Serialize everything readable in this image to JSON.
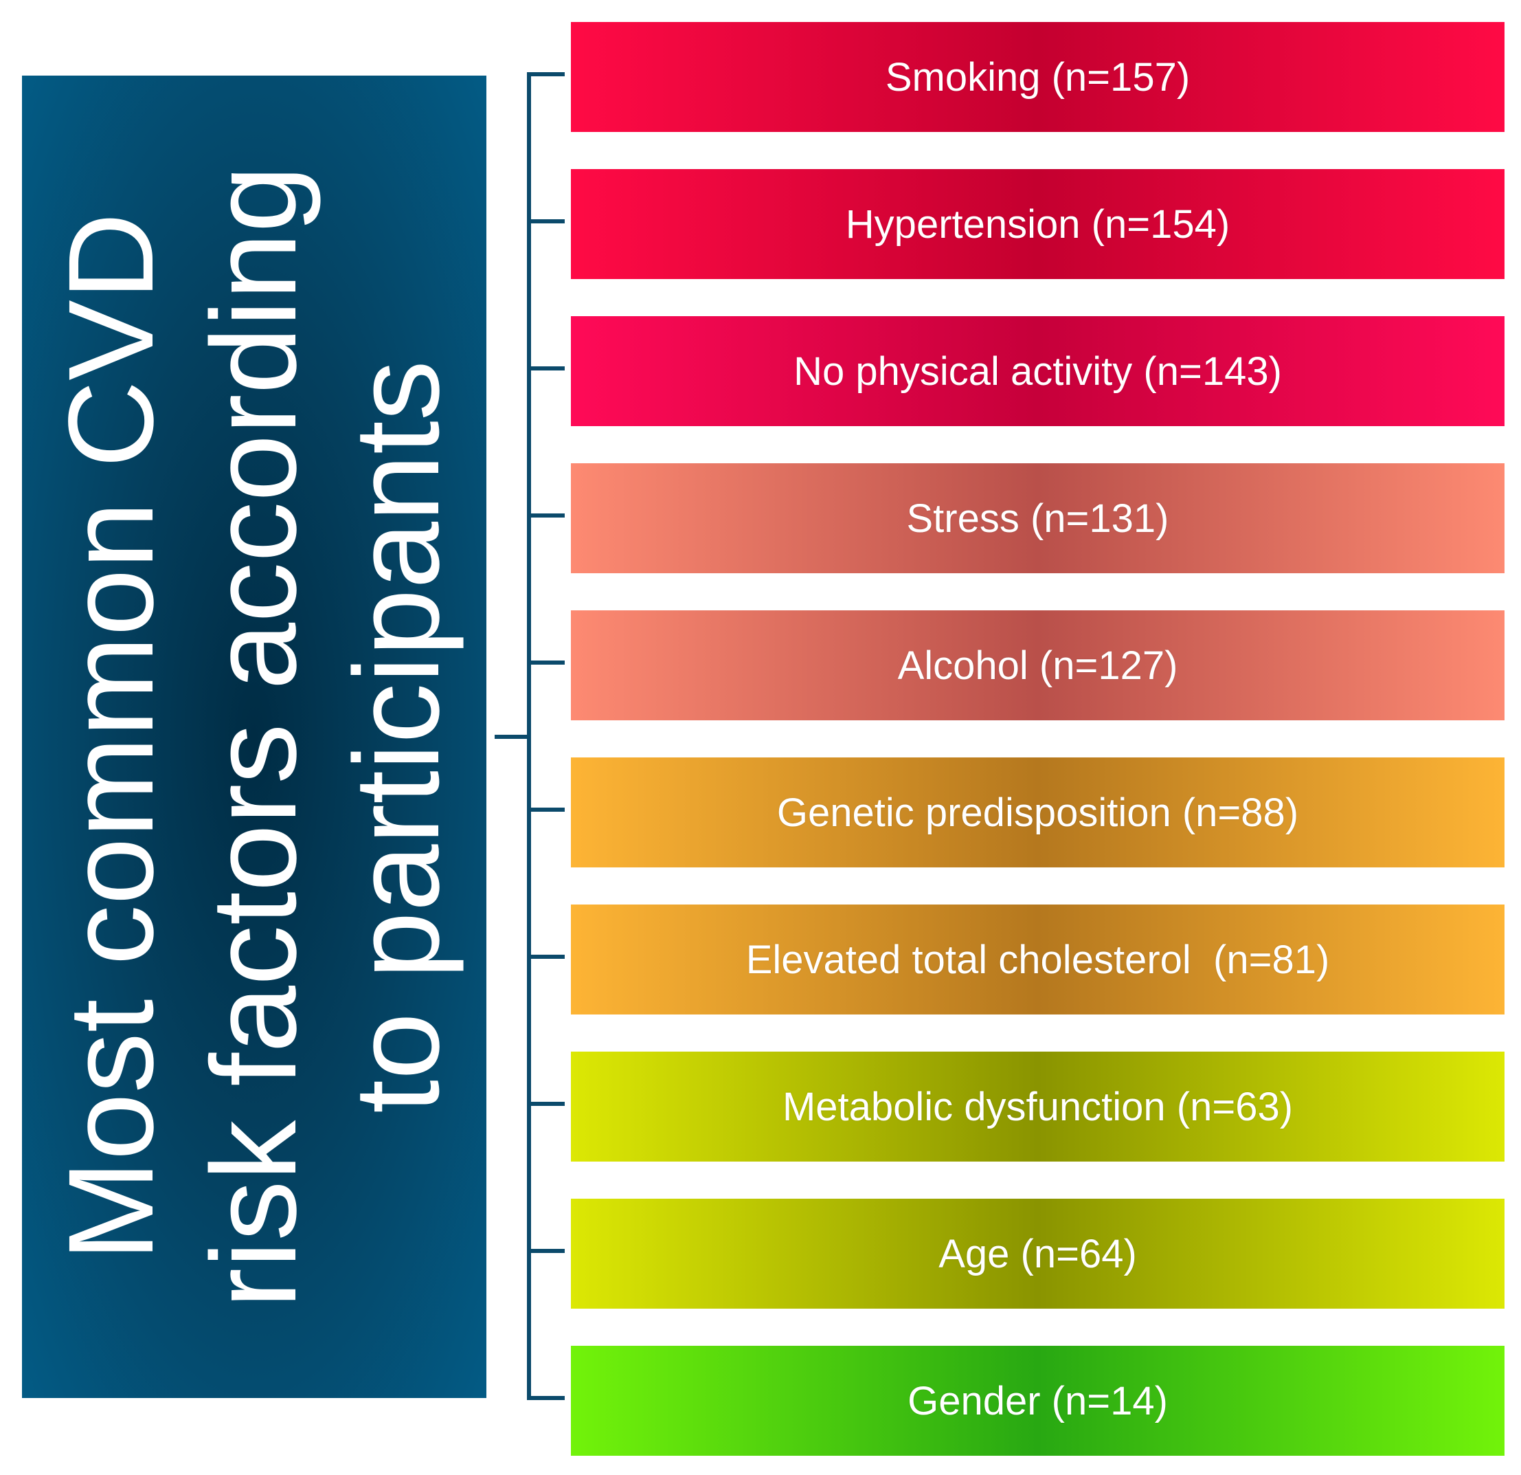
{
  "title": {
    "line1": "Most common CVD",
    "line2": "risk factors according",
    "line3": "to participants"
  },
  "factors": [
    {
      "label": "Smoking (n=157)"
    },
    {
      "label": "Hypertension (n=154)"
    },
    {
      "label": "No physical activity (n=143)"
    },
    {
      "label": "Stress (n=131)"
    },
    {
      "label": "Alcohol (n=127)"
    },
    {
      "label": "Genetic predisposition (n=88)"
    },
    {
      "label": "Elevated total cholesterol  (n=81)"
    },
    {
      "label": "Metabolic dysfunction (n=63)"
    },
    {
      "label": "Age (n=64)"
    },
    {
      "label": "Gender (n=14)"
    }
  ],
  "colors": {
    "title_panel": "#04405f",
    "bracket": "#0b4a6b",
    "red": "#ff0a45",
    "salmon": "#fd8a72",
    "orange": "#fdb435",
    "yellow_green": "#dce804",
    "green": "#72f30a"
  }
}
